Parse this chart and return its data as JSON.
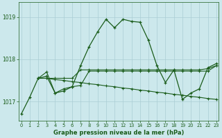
{
  "bg_color": "#cce8ec",
  "grid_color": "#aacdd4",
  "line_color": "#1a5c1a",
  "title": "Graphe pression niveau de la mer (hPa)",
  "ylabel_values": [
    1017,
    1018,
    1019
  ],
  "xlim": [
    -0.3,
    23.3
  ],
  "ylim": [
    1016.55,
    1019.35
  ],
  "x_ticks": [
    0,
    1,
    2,
    3,
    4,
    5,
    6,
    7,
    8,
    9,
    10,
    11,
    12,
    13,
    14,
    15,
    16,
    17,
    18,
    19,
    20,
    21,
    22,
    23
  ],
  "series": {
    "main": {
      "x": [
        0,
        1,
        2,
        3,
        4,
        5,
        6,
        7,
        8,
        9,
        10,
        11,
        12,
        13,
        14,
        15,
        16,
        17,
        18,
        19,
        20,
        21,
        22,
        23
      ],
      "y": [
        1016.7,
        1017.1,
        1017.55,
        1017.6,
        1017.2,
        1017.25,
        1017.35,
        1017.85,
        1018.3,
        1018.65,
        1018.95,
        1018.75,
        1018.95,
        1018.9,
        1018.88,
        1018.45,
        1017.85,
        1017.45,
        1017.75,
        1017.05,
        1017.2,
        1017.3,
        1017.8,
        1017.9
      ]
    },
    "line_flat_decline": {
      "x": [
        2,
        3,
        4,
        5,
        6,
        7,
        8,
        9,
        10,
        11,
        12,
        13,
        14,
        15,
        16,
        17,
        18,
        19,
        20,
        21,
        22,
        23
      ],
      "y": [
        1017.55,
        1017.55,
        1017.52,
        1017.5,
        1017.47,
        1017.45,
        1017.42,
        1017.4,
        1017.37,
        1017.35,
        1017.32,
        1017.3,
        1017.27,
        1017.25,
        1017.22,
        1017.2,
        1017.17,
        1017.15,
        1017.12,
        1017.1,
        1017.07,
        1017.05
      ]
    },
    "line_mid": {
      "x": [
        2,
        3,
        4,
        5,
        6,
        7,
        8,
        9,
        10,
        11,
        12,
        13,
        14,
        15,
        16,
        17,
        18,
        19,
        20,
        21,
        22,
        23
      ],
      "y": [
        1017.55,
        1017.7,
        1017.2,
        1017.3,
        1017.35,
        1017.38,
        1017.72,
        1017.72,
        1017.72,
        1017.72,
        1017.72,
        1017.72,
        1017.72,
        1017.72,
        1017.72,
        1017.72,
        1017.72,
        1017.72,
        1017.72,
        1017.72,
        1017.72,
        1017.85
      ]
    },
    "line_upper_flat": {
      "x": [
        2,
        3,
        4,
        5,
        6,
        7,
        8,
        9,
        10,
        11,
        12,
        13,
        14,
        15,
        16,
        17,
        18,
        19,
        20,
        21,
        22,
        23
      ],
      "y": [
        1017.55,
        1017.55,
        1017.55,
        1017.55,
        1017.55,
        1017.75,
        1017.75,
        1017.75,
        1017.75,
        1017.75,
        1017.75,
        1017.75,
        1017.75,
        1017.75,
        1017.75,
        1017.75,
        1017.75,
        1017.75,
        1017.75,
        1017.75,
        1017.78,
        1017.85
      ]
    }
  }
}
